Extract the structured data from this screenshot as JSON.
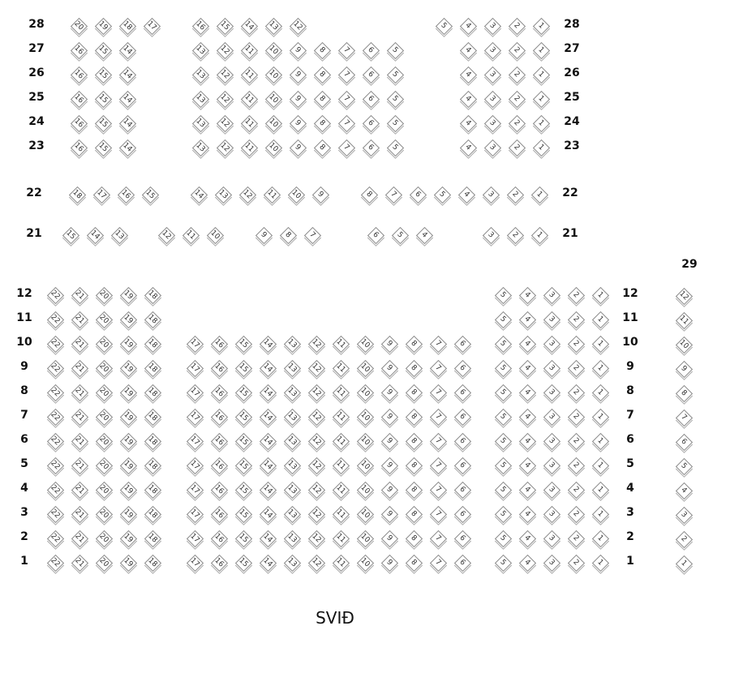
{
  "stage_label": "SVIÐ",
  "upper_rows": [
    {
      "row": "28",
      "blocks": [
        [
          20,
          19,
          18,
          17
        ],
        [
          16,
          15,
          14,
          13,
          12
        ],
        [
          5,
          4,
          3,
          2,
          1
        ]
      ]
    },
    {
      "row": "27",
      "blocks": [
        [
          16,
          15,
          14
        ],
        [
          13,
          12,
          11,
          10,
          9,
          8,
          7,
          6,
          5
        ],
        [
          4,
          3,
          2,
          1
        ]
      ]
    },
    {
      "row": "26",
      "blocks": [
        [
          16,
          15,
          14
        ],
        [
          13,
          12,
          11,
          10,
          9,
          8,
          7,
          6,
          5
        ],
        [
          4,
          3,
          2,
          1
        ]
      ]
    },
    {
      "row": "25",
      "blocks": [
        [
          16,
          15,
          14
        ],
        [
          13,
          12,
          11,
          10,
          9,
          8,
          7,
          6,
          5
        ],
        [
          4,
          3,
          2,
          1
        ]
      ]
    },
    {
      "row": "24",
      "blocks": [
        [
          16,
          15,
          14
        ],
        [
          13,
          12,
          11,
          10,
          9,
          8,
          7,
          6,
          5
        ],
        [
          4,
          3,
          2,
          1
        ]
      ]
    },
    {
      "row": "23",
      "blocks": [
        [
          16,
          15,
          14
        ],
        [
          13,
          12,
          11,
          10,
          9,
          8,
          7,
          6,
          5
        ],
        [
          4,
          3,
          2,
          1
        ]
      ]
    },
    {
      "row": "22",
      "blocks": [
        [
          18,
          17,
          16,
          15
        ],
        [
          14,
          13,
          12,
          11,
          10,
          9
        ],
        [
          8,
          7,
          6,
          5,
          4,
          3,
          2,
          1
        ]
      ]
    },
    {
      "row": "21",
      "blocks": [
        [
          15,
          14,
          13
        ],
        [
          12,
          11,
          10
        ],
        [
          9,
          8,
          7
        ],
        [
          6,
          5,
          4
        ],
        [
          3,
          2,
          1
        ]
      ]
    }
  ],
  "lower_rows": [
    {
      "row": "12",
      "blocks": [
        [
          22,
          21,
          20,
          19,
          18
        ],
        [],
        [
          5,
          4,
          3,
          2,
          1
        ]
      ]
    },
    {
      "row": "11",
      "blocks": [
        [
          22,
          21,
          20,
          19,
          18
        ],
        [],
        [
          5,
          4,
          3,
          2,
          1
        ]
      ]
    },
    {
      "row": "10",
      "blocks": [
        [
          22,
          21,
          20,
          19,
          18
        ],
        [
          17,
          16,
          15,
          14,
          13,
          12,
          11,
          10,
          9,
          8,
          7,
          6
        ],
        [
          5,
          4,
          3,
          2,
          1
        ]
      ]
    },
    {
      "row": "9",
      "blocks": [
        [
          22,
          21,
          20,
          19,
          18
        ],
        [
          17,
          16,
          15,
          14,
          13,
          12,
          11,
          10,
          9,
          8,
          7,
          6
        ],
        [
          5,
          4,
          3,
          2,
          1
        ]
      ]
    },
    {
      "row": "8",
      "blocks": [
        [
          22,
          21,
          20,
          19,
          18
        ],
        [
          17,
          16,
          15,
          14,
          13,
          12,
          11,
          10,
          9,
          8,
          7,
          6
        ],
        [
          5,
          4,
          3,
          2,
          1
        ]
      ]
    },
    {
      "row": "7",
      "blocks": [
        [
          22,
          21,
          20,
          19,
          18
        ],
        [
          17,
          16,
          15,
          14,
          13,
          12,
          11,
          10,
          9,
          8,
          7,
          6
        ],
        [
          5,
          4,
          3,
          2,
          1
        ]
      ]
    },
    {
      "row": "6",
      "blocks": [
        [
          22,
          21,
          20,
          19,
          18
        ],
        [
          17,
          16,
          15,
          14,
          13,
          12,
          11,
          10,
          9,
          8,
          7,
          6
        ],
        [
          5,
          4,
          3,
          2,
          1
        ]
      ]
    },
    {
      "row": "5",
      "blocks": [
        [
          22,
          21,
          20,
          19,
          18
        ],
        [
          17,
          16,
          15,
          14,
          13,
          12,
          11,
          10,
          9,
          8,
          7,
          6
        ],
        [
          5,
          4,
          3,
          2,
          1
        ]
      ]
    },
    {
      "row": "4",
      "blocks": [
        [
          22,
          21,
          20,
          19,
          18
        ],
        [
          17,
          16,
          15,
          14,
          13,
          12,
          11,
          10,
          9,
          8,
          7,
          6
        ],
        [
          5,
          4,
          3,
          2,
          1
        ]
      ]
    },
    {
      "row": "3",
      "blocks": [
        [
          22,
          21,
          20,
          19,
          18
        ],
        [
          17,
          16,
          15,
          14,
          13,
          12,
          11,
          10,
          9,
          8,
          7,
          6
        ],
        [
          5,
          4,
          3,
          2,
          1
        ]
      ]
    },
    {
      "row": "2",
      "blocks": [
        [
          22,
          21,
          20,
          19,
          18
        ],
        [
          17,
          16,
          15,
          14,
          13,
          12,
          11,
          10,
          9,
          8,
          7,
          6
        ],
        [
          5,
          4,
          3,
          2,
          1
        ]
      ]
    },
    {
      "row": "1",
      "blocks": [
        [
          22,
          21,
          20,
          19,
          18
        ],
        [
          17,
          16,
          15,
          14,
          13,
          12,
          11,
          10,
          9,
          8,
          7,
          6
        ],
        [
          5,
          4,
          3,
          2,
          1
        ]
      ]
    }
  ],
  "side_row": {
    "row": "29",
    "seats": [
      12,
      11,
      10,
      9,
      8,
      7,
      6,
      5,
      4,
      3,
      2,
      1
    ]
  }
}
